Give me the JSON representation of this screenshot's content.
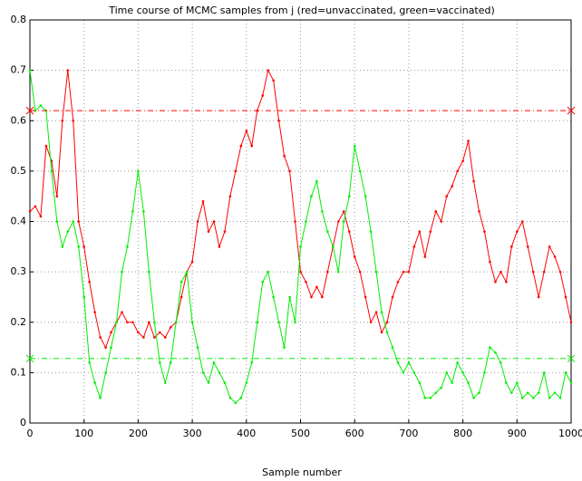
{
  "chart_data": {
    "type": "line",
    "title": "Time course of MCMC samples from j (red=unvaccinated, green=vaccinated)",
    "x_label": "Sample number",
    "x": [
      0,
      10,
      20,
      30,
      40,
      50,
      60,
      70,
      80,
      90,
      100,
      110,
      120,
      130,
      140,
      150,
      160,
      170,
      180,
      190,
      200,
      210,
      220,
      230,
      240,
      250,
      260,
      270,
      280,
      290,
      300,
      310,
      320,
      330,
      340,
      350,
      360,
      370,
      380,
      390,
      400,
      410,
      420,
      430,
      440,
      450,
      460,
      470,
      480,
      490,
      500,
      510,
      520,
      530,
      540,
      550,
      560,
      570,
      580,
      590,
      600,
      610,
      620,
      630,
      640,
      650,
      660,
      670,
      680,
      690,
      700,
      710,
      720,
      730,
      740,
      750,
      760,
      770,
      780,
      790,
      800,
      810,
      820,
      830,
      840,
      850,
      860,
      870,
      880,
      890,
      900,
      910,
      920,
      930,
      940,
      950,
      960,
      970,
      980,
      990,
      1000
    ],
    "series": [
      {
        "name": "unvaccinated",
        "color": "#ff0000",
        "values": [
          0.42,
          0.43,
          0.41,
          0.55,
          0.52,
          0.45,
          0.6,
          0.7,
          0.6,
          0.4,
          0.35,
          0.28,
          0.22,
          0.17,
          0.15,
          0.18,
          0.2,
          0.22,
          0.2,
          0.2,
          0.18,
          0.17,
          0.2,
          0.17,
          0.18,
          0.17,
          0.19,
          0.2,
          0.25,
          0.3,
          0.32,
          0.4,
          0.44,
          0.38,
          0.4,
          0.35,
          0.38,
          0.45,
          0.5,
          0.55,
          0.58,
          0.55,
          0.62,
          0.65,
          0.7,
          0.68,
          0.6,
          0.53,
          0.5,
          0.4,
          0.3,
          0.28,
          0.25,
          0.27,
          0.25,
          0.3,
          0.35,
          0.4,
          0.42,
          0.38,
          0.33,
          0.3,
          0.25,
          0.2,
          0.22,
          0.18,
          0.2,
          0.25,
          0.28,
          0.3,
          0.3,
          0.35,
          0.38,
          0.33,
          0.38,
          0.42,
          0.4,
          0.45,
          0.47,
          0.5,
          0.52,
          0.56,
          0.48,
          0.42,
          0.38,
          0.32,
          0.28,
          0.3,
          0.28,
          0.35,
          0.38,
          0.4,
          0.35,
          0.3,
          0.25,
          0.3,
          0.35,
          0.33,
          0.3,
          0.25,
          0.2
        ]
      },
      {
        "name": "vaccinated",
        "color": "#00ee00",
        "values": [
          0.7,
          0.62,
          0.63,
          0.62,
          0.5,
          0.4,
          0.35,
          0.38,
          0.4,
          0.35,
          0.25,
          0.12,
          0.08,
          0.05,
          0.1,
          0.15,
          0.2,
          0.3,
          0.35,
          0.42,
          0.5,
          0.42,
          0.3,
          0.2,
          0.12,
          0.08,
          0.12,
          0.2,
          0.28,
          0.3,
          0.2,
          0.15,
          0.1,
          0.08,
          0.12,
          0.1,
          0.08,
          0.05,
          0.04,
          0.05,
          0.08,
          0.12,
          0.2,
          0.28,
          0.3,
          0.25,
          0.2,
          0.15,
          0.25,
          0.2,
          0.35,
          0.4,
          0.45,
          0.48,
          0.42,
          0.38,
          0.35,
          0.3,
          0.4,
          0.45,
          0.55,
          0.5,
          0.45,
          0.38,
          0.3,
          0.22,
          0.18,
          0.15,
          0.12,
          0.1,
          0.12,
          0.1,
          0.08,
          0.05,
          0.05,
          0.06,
          0.07,
          0.1,
          0.08,
          0.12,
          0.1,
          0.08,
          0.05,
          0.06,
          0.1,
          0.15,
          0.14,
          0.12,
          0.08,
          0.06,
          0.08,
          0.05,
          0.06,
          0.05,
          0.06,
          0.1,
          0.05,
          0.06,
          0.05,
          0.1,
          0.08
        ]
      }
    ],
    "reference_lines": [
      {
        "value": 0.62,
        "color": "#ff0000"
      },
      {
        "value": 0.128,
        "color": "#00ee00"
      }
    ],
    "xlim": [
      0,
      1000
    ],
    "xticks": [
      0,
      100,
      200,
      300,
      400,
      500,
      600,
      700,
      800,
      900,
      1000
    ],
    "ylim": [
      0,
      0.8
    ],
    "yticks": [
      0,
      0.1,
      0.2,
      0.3,
      0.4,
      0.5,
      0.6,
      0.7,
      0.8
    ],
    "grid": true
  }
}
